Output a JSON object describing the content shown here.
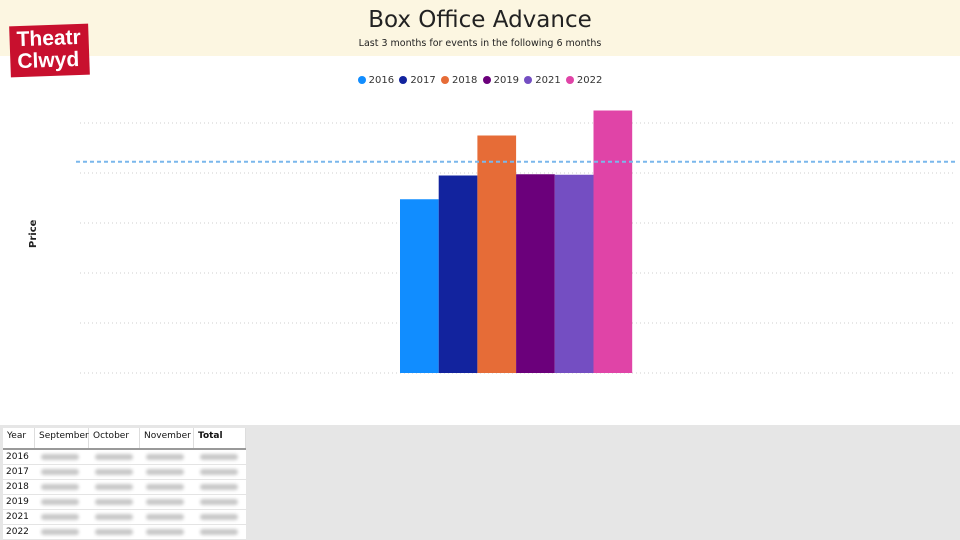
{
  "header": {
    "title": "Box Office Advance",
    "subtitle": "Last 3 months for events in the following 6 months",
    "logo_line1": "Theatr",
    "logo_line2": "Clwyd"
  },
  "chart_data": {
    "type": "bar",
    "title": "Box Office Advance",
    "ylabel": "Price",
    "xlabel": "",
    "categories": [
      "2016",
      "2017",
      "2018",
      "2019",
      "2021",
      "2022"
    ],
    "values": [
      0.695,
      0.79,
      0.95,
      0.795,
      0.793,
      1.05
    ],
    "reference_line": 0.845,
    "ylim": [
      0,
      1.0
    ],
    "y_ticks": [
      0,
      0.2,
      0.4,
      0.6,
      0.8,
      1.0
    ],
    "grid": true,
    "legend_position": "top-center",
    "colors": [
      "#118dff",
      "#12239e",
      "#e66c37",
      "#6b007b",
      "#744ec2",
      "#e044a7"
    ],
    "reference_color": "#7ab7ec"
  },
  "legend": [
    "2016",
    "2017",
    "2018",
    "2019",
    "2021",
    "2022"
  ],
  "table": {
    "headers": [
      "Year",
      "September",
      "October",
      "November",
      "Total"
    ],
    "years": [
      "2016",
      "2017",
      "2018",
      "2019",
      "2021",
      "2022"
    ]
  }
}
